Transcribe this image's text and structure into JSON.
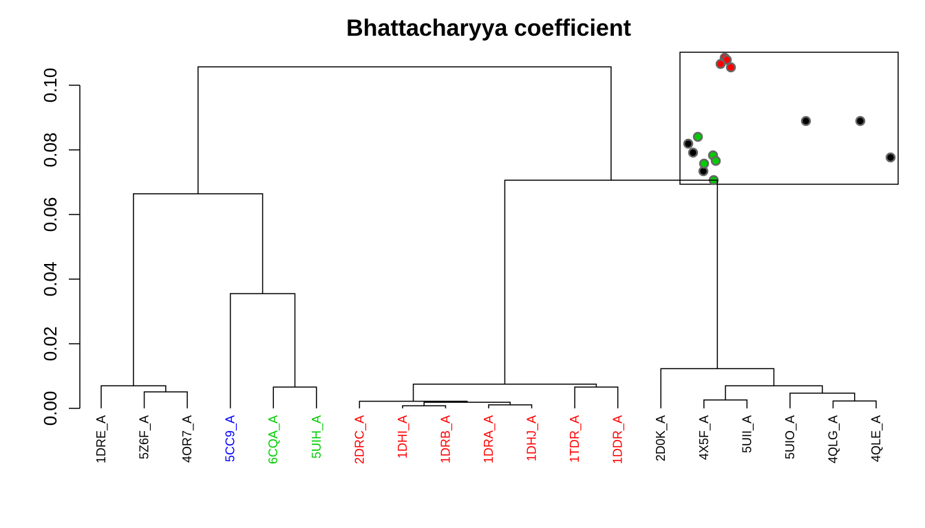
{
  "chart_data": {
    "type": "dendrogram",
    "title": "Bhattacharyya coefficient",
    "leaves": [
      {
        "label": "1DRE_A",
        "color": "#000000"
      },
      {
        "label": "5Z6F_A",
        "color": "#000000"
      },
      {
        "label": "4OR7_A",
        "color": "#000000"
      },
      {
        "label": "5CC9_A",
        "color": "#0000ff"
      },
      {
        "label": "6CQA_A",
        "color": "#00cd00"
      },
      {
        "label": "5UIH_A",
        "color": "#00cd00"
      },
      {
        "label": "2DRC_A",
        "color": "#ff0000"
      },
      {
        "label": "1DHI_A",
        "color": "#ff0000"
      },
      {
        "label": "1DRB_A",
        "color": "#ff0000"
      },
      {
        "label": "1DRA_A",
        "color": "#ff0000"
      },
      {
        "label": "1DHJ_A",
        "color": "#ff0000"
      },
      {
        "label": "1TDR_A",
        "color": "#ff0000"
      },
      {
        "label": "1DDR_A",
        "color": "#ff0000"
      },
      {
        "label": "2D0K_A",
        "color": "#000000"
      },
      {
        "label": "4X5F_A",
        "color": "#000000"
      },
      {
        "label": "5UII_A",
        "color": "#000000"
      },
      {
        "label": "5UIO_A",
        "color": "#000000"
      },
      {
        "label": "4QLG_A",
        "color": "#000000"
      },
      {
        "label": "4QLE_A",
        "color": "#000000"
      }
    ],
    "merges": [
      {
        "children": [
          -8,
          -9
        ],
        "height": 0.0008
      },
      {
        "children": [
          -10,
          -11
        ],
        "height": 0.0011
      },
      {
        "children": [
          1,
          2
        ],
        "height": 0.0019
      },
      {
        "children": [
          -7,
          3
        ],
        "height": 0.0022
      },
      {
        "children": [
          -18,
          -19
        ],
        "height": 0.0023
      },
      {
        "children": [
          -15,
          -16
        ],
        "height": 0.0026
      },
      {
        "children": [
          -17,
          5
        ],
        "height": 0.0047
      },
      {
        "children": [
          -2,
          -3
        ],
        "height": 0.0051
      },
      {
        "children": [
          -12,
          -13
        ],
        "height": 0.0066
      },
      {
        "children": [
          -5,
          -6
        ],
        "height": 0.0066
      },
      {
        "children": [
          -1,
          8
        ],
        "height": 0.007
      },
      {
        "children": [
          6,
          7
        ],
        "height": 0.007
      },
      {
        "children": [
          4,
          9
        ],
        "height": 0.0075
      },
      {
        "children": [
          -14,
          12
        ],
        "height": 0.0123
      },
      {
        "children": [
          -4,
          10
        ],
        "height": 0.0355
      },
      {
        "children": [
          11,
          15
        ],
        "height": 0.0664
      },
      {
        "children": [
          13,
          14
        ],
        "height": 0.0706
      },
      {
        "children": [
          16,
          17
        ],
        "height": 0.1057
      }
    ],
    "ylim": [
      0,
      0.1
    ],
    "yticks": [
      {
        "value": 0,
        "label": "0.00"
      },
      {
        "value": 0.02,
        "label": "0.02"
      },
      {
        "value": 0.04,
        "label": "0.04"
      },
      {
        "value": 0.06,
        "label": "0.06"
      },
      {
        "value": 0.08,
        "label": "0.08"
      },
      {
        "value": 0.1,
        "label": "0.10"
      }
    ]
  }
}
